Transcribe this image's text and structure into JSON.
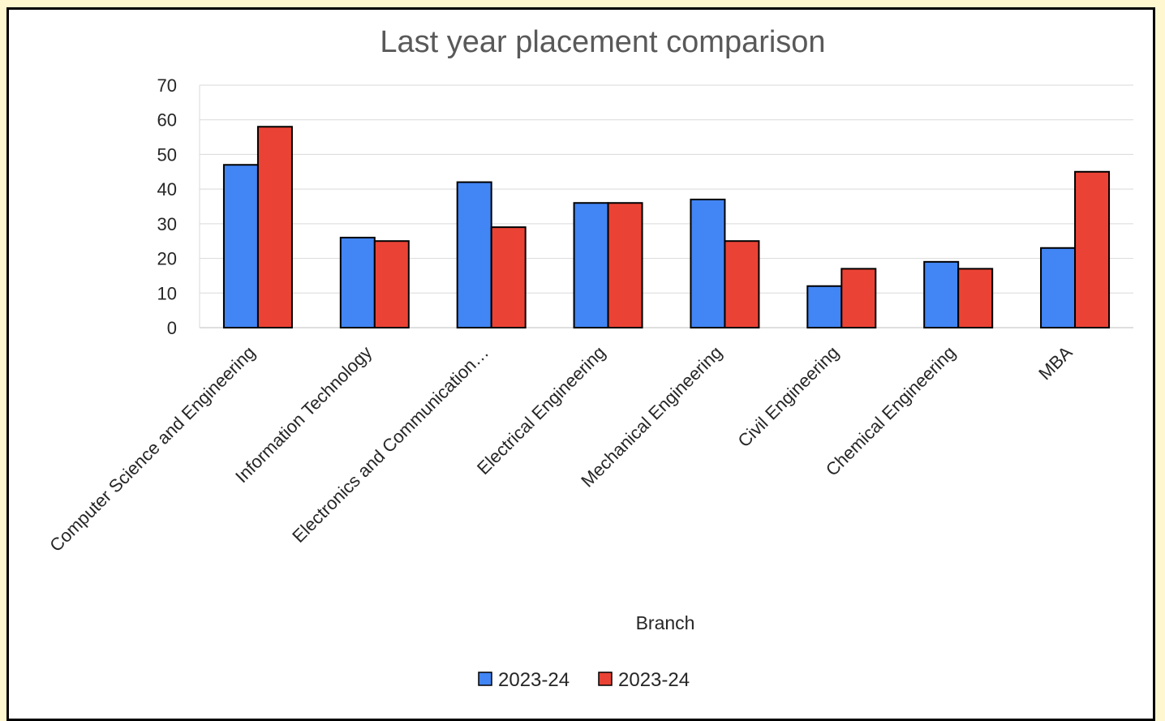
{
  "chart_data": {
    "type": "bar",
    "title": "Last year placement comparison",
    "xlabel": "Branch",
    "ylabel": "",
    "ylim": [
      0,
      70
    ],
    "yticks": [
      0,
      10,
      20,
      30,
      40,
      50,
      60,
      70
    ],
    "grid": true,
    "legend_position": "bottom",
    "categories": [
      "Computer Science and Engineering",
      "Information Technology",
      "Electronics and Communication…",
      "Electrical Engineering",
      "Mechanical Engineering",
      "Civil Engineering",
      "Chemical Engineering",
      "MBA"
    ],
    "series": [
      {
        "name": "2023-24",
        "color": "#4285f4",
        "values": [
          47,
          26,
          42,
          36,
          37,
          12,
          19,
          23
        ]
      },
      {
        "name": "2023-24",
        "color": "#ea4335",
        "values": [
          58,
          25,
          29,
          36,
          25,
          17,
          17,
          45
        ]
      }
    ]
  }
}
